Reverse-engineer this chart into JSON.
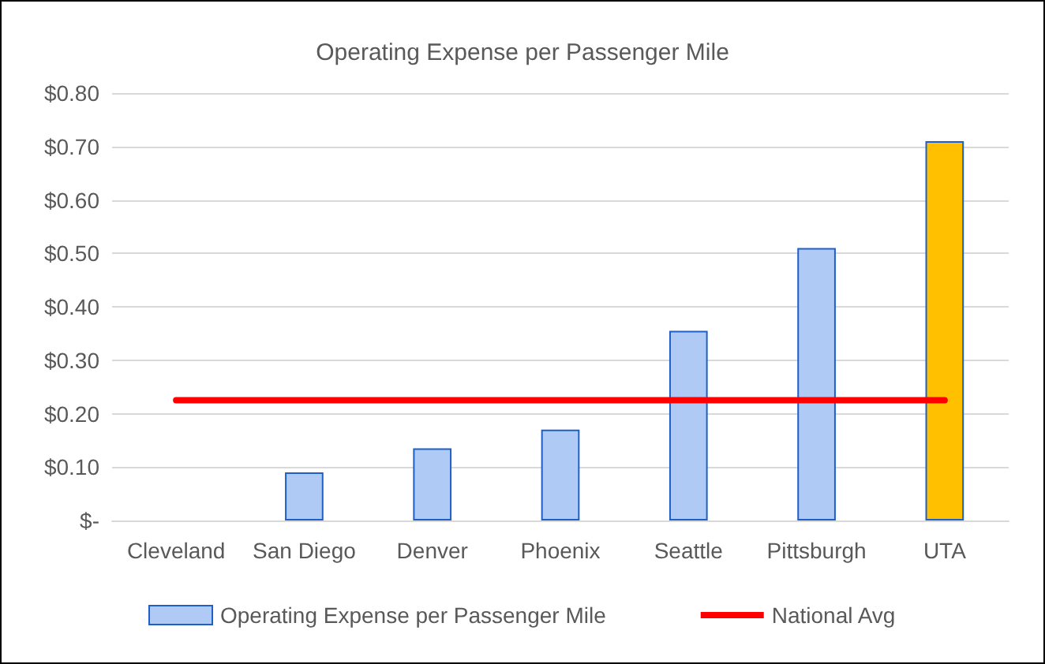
{
  "chart_data": {
    "type": "bar",
    "title": "Operating Expense per Passenger Mile",
    "categories": [
      "Cleveland",
      "San Diego",
      "Denver",
      "Phoenix",
      "Seattle",
      "Pittsburgh",
      "UTA"
    ],
    "series": [
      {
        "name": "Operating Expense per Passenger Mile",
        "color": "#afcbf5",
        "colors": [
          "#afcbf5",
          "#afcbf5",
          "#afcbf5",
          "#afcbf5",
          "#afcbf5",
          "#afcbf5",
          "#ffc000"
        ],
        "values": [
          null,
          0.09,
          0.135,
          0.17,
          0.355,
          0.51,
          0.71
        ]
      },
      {
        "name": "National Avg",
        "type": "line",
        "color": "#ff0000",
        "values": [
          0.225,
          0.225,
          0.225,
          0.225,
          0.225,
          0.225,
          0.225
        ]
      }
    ],
    "ylim": [
      0,
      0.8
    ],
    "yticks": [
      {
        "value": 0,
        "label": "$-"
      },
      {
        "value": 0.1,
        "label": "$0.10"
      },
      {
        "value": 0.2,
        "label": "$0.20"
      },
      {
        "value": 0.3,
        "label": "$0.30"
      },
      {
        "value": 0.4,
        "label": "$0.40"
      },
      {
        "value": 0.5,
        "label": "$0.50"
      },
      {
        "value": 0.6,
        "label": "$0.60"
      },
      {
        "value": 0.7,
        "label": "$0.70"
      },
      {
        "value": 0.8,
        "label": "$0.80"
      }
    ],
    "grid": "y",
    "legend": "bottom",
    "marker": "none"
  }
}
